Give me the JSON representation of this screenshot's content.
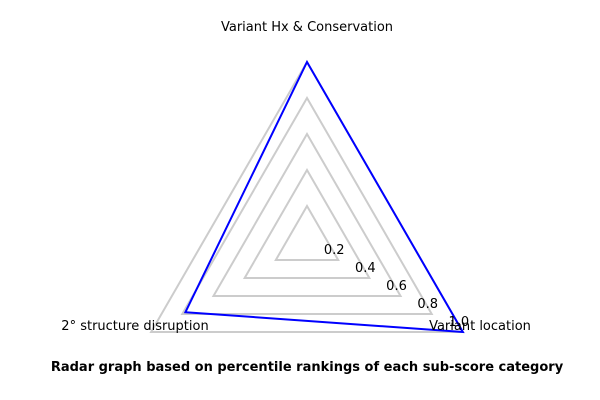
{
  "chart_data": {
    "type": "radar",
    "axes": [
      "Variant Hx & Conservation",
      "Variant location",
      "2° structure disruption"
    ],
    "rings": [
      0.2,
      0.4,
      0.6,
      0.8,
      1.0
    ],
    "tick_labels": [
      "0.2",
      "0.4",
      "0.6",
      "0.8",
      "1.0"
    ],
    "rlim": [
      0,
      1.0
    ],
    "series": [
      {
        "values": [
          1.0,
          1.0,
          0.78
        ]
      }
    ],
    "caption": "Radar graph based on percentile rankings of each sub-score category",
    "colors": {
      "series": "#0000ff",
      "grid": "#cccccc"
    }
  }
}
